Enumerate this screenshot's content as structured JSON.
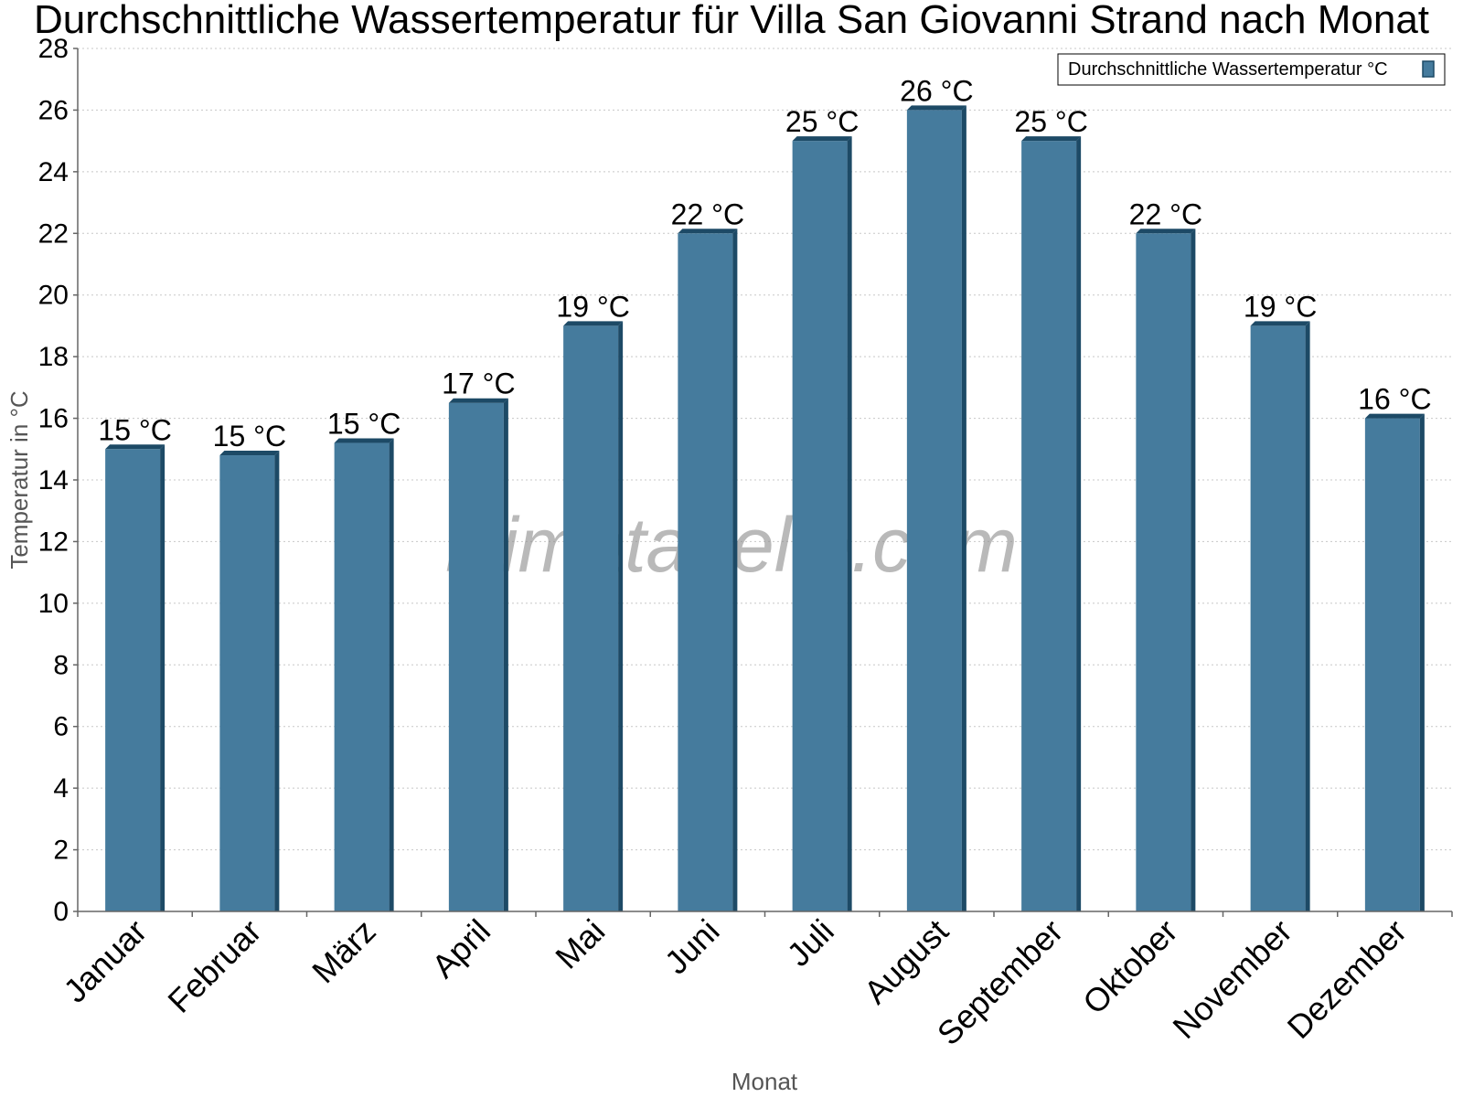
{
  "chart_data": {
    "type": "bar",
    "title": "Durchschnittliche Wassertemperatur für Villa San Giovanni Strand nach Monat",
    "xlabel": "Monat",
    "ylabel": "Temperatur in °C",
    "ylim": [
      0,
      28
    ],
    "yticks": [
      0,
      2,
      4,
      6,
      8,
      10,
      12,
      14,
      16,
      18,
      20,
      22,
      24,
      26,
      28
    ],
    "grid": true,
    "legend_position": "top-right",
    "categories": [
      "Januar",
      "Februar",
      "März",
      "April",
      "Mai",
      "Juni",
      "Juli",
      "August",
      "September",
      "Oktober",
      "November",
      "Dezember"
    ],
    "series": [
      {
        "name": "Durchschnittliche Wassertemperatur °C",
        "color": "#457b9d",
        "values": [
          15.0,
          14.8,
          15.2,
          16.5,
          19.0,
          22.0,
          25.0,
          26.0,
          25.0,
          22.0,
          19.0,
          16.0
        ],
        "data_labels": [
          "15 °C",
          "15 °C",
          "15 °C",
          "17 °C",
          "19 °C",
          "22 °C",
          "25 °C",
          "26 °C",
          "25 °C",
          "22 °C",
          "19 °C",
          "16 °C"
        ]
      }
    ],
    "watermark": "klimatabelle.com"
  }
}
